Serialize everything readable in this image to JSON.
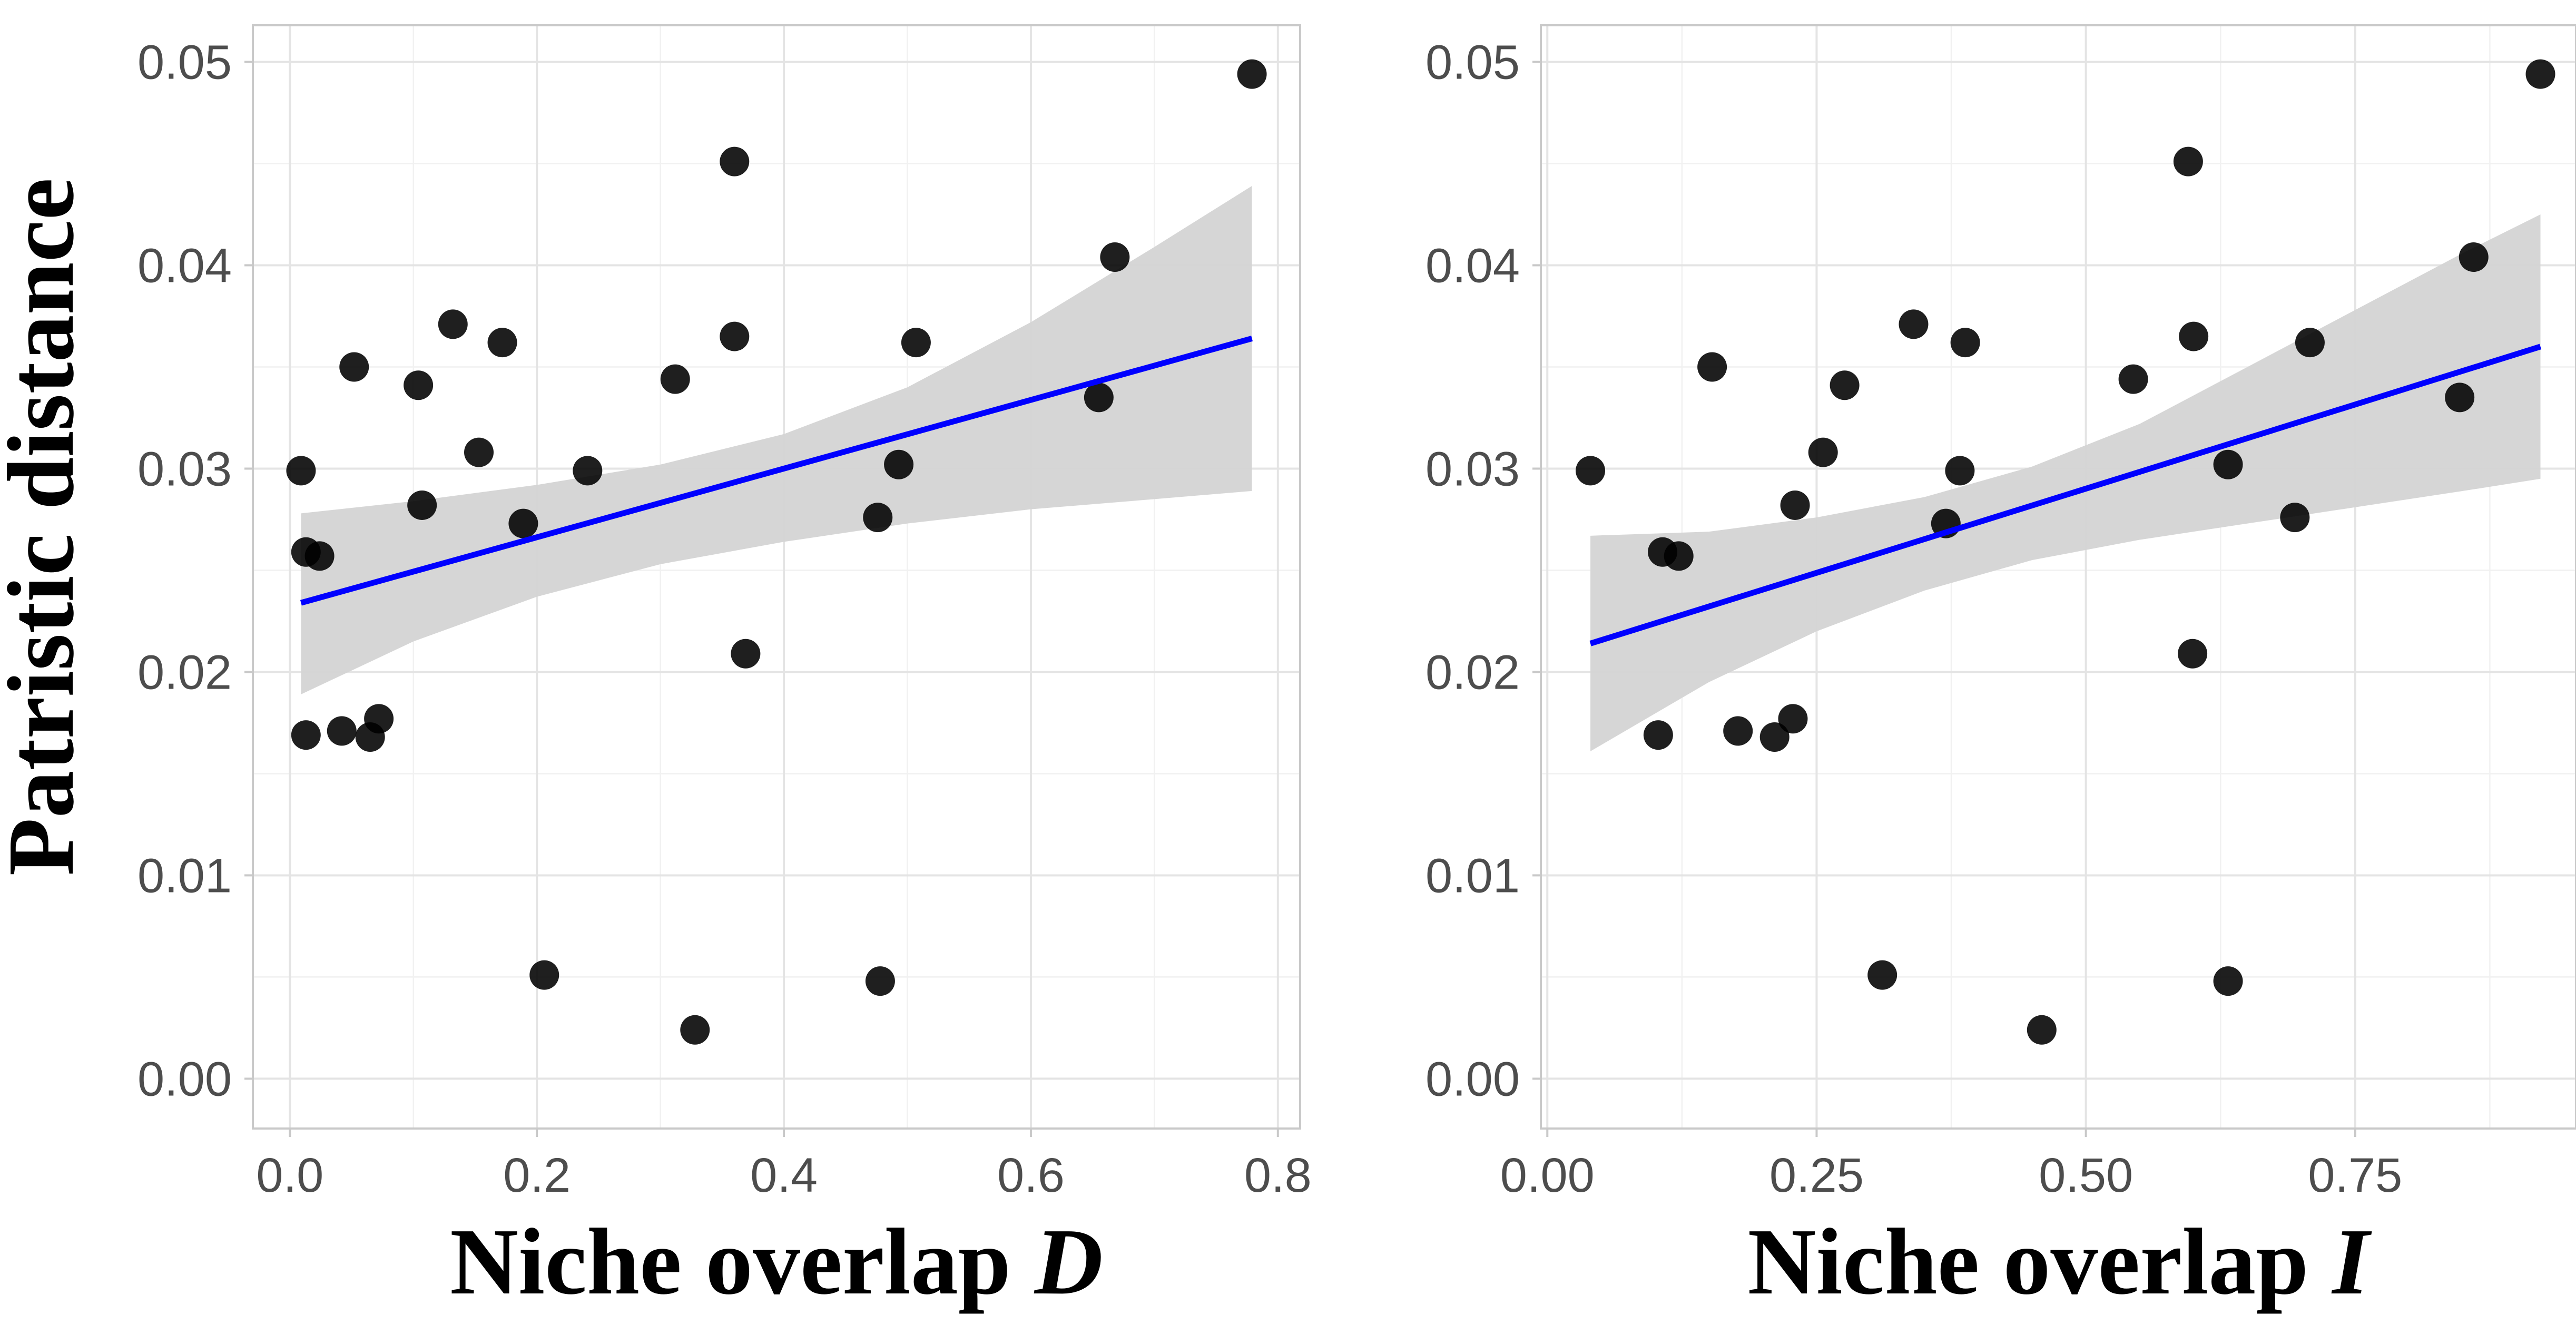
{
  "ylabel": "Patristic distance",
  "chart_data": [
    {
      "type": "scatter",
      "xlabel_prefix": "Niche overlap ",
      "xlabel_var": "D",
      "ylabel": "Patristic distance",
      "xlim": [
        -0.03,
        0.818
      ],
      "ylim": [
        -0.00245,
        0.0518
      ],
      "x_ticks": [
        0.0,
        0.2,
        0.4,
        0.6,
        0.8
      ],
      "x_tick_labels": [
        "0.0",
        "0.2",
        "0.4",
        "0.6",
        "0.8"
      ],
      "y_ticks": [
        0.0,
        0.01,
        0.02,
        0.03,
        0.04,
        0.05
      ],
      "y_tick_labels": [
        "0.00",
        "0.01",
        "0.02",
        "0.03",
        "0.04",
        "0.05"
      ],
      "grid": true,
      "point_color": "#000000",
      "fit_color": "#0000ff",
      "band_color": "#d4d4d4",
      "points": [
        {
          "x": 0.009,
          "y": 0.0299
        },
        {
          "x": 0.013,
          "y": 0.0259
        },
        {
          "x": 0.024,
          "y": 0.0257
        },
        {
          "x": 0.013,
          "y": 0.0169
        },
        {
          "x": 0.042,
          "y": 0.0171
        },
        {
          "x": 0.065,
          "y": 0.0168
        },
        {
          "x": 0.072,
          "y": 0.0177
        },
        {
          "x": 0.052,
          "y": 0.035
        },
        {
          "x": 0.104,
          "y": 0.0341
        },
        {
          "x": 0.107,
          "y": 0.0282
        },
        {
          "x": 0.132,
          "y": 0.0371
        },
        {
          "x": 0.153,
          "y": 0.0308
        },
        {
          "x": 0.172,
          "y": 0.0362
        },
        {
          "x": 0.189,
          "y": 0.0273
        },
        {
          "x": 0.206,
          "y": 0.0051
        },
        {
          "x": 0.241,
          "y": 0.0299
        },
        {
          "x": 0.312,
          "y": 0.0344
        },
        {
          "x": 0.328,
          "y": 0.0024
        },
        {
          "x": 0.36,
          "y": 0.0451
        },
        {
          "x": 0.36,
          "y": 0.0365
        },
        {
          "x": 0.369,
          "y": 0.0209
        },
        {
          "x": 0.476,
          "y": 0.0276
        },
        {
          "x": 0.478,
          "y": 0.0048
        },
        {
          "x": 0.493,
          "y": 0.0302
        },
        {
          "x": 0.507,
          "y": 0.0362
        },
        {
          "x": 0.655,
          "y": 0.0335
        },
        {
          "x": 0.668,
          "y": 0.0404
        },
        {
          "x": 0.779,
          "y": 0.0494
        }
      ],
      "fit": {
        "x": [
          0.009,
          0.779
        ],
        "y": [
          0.0234,
          0.0364
        ]
      },
      "band": {
        "x": [
          0.009,
          0.1,
          0.2,
          0.3,
          0.4,
          0.5,
          0.6,
          0.7,
          0.779
        ],
        "lower": [
          0.0189,
          0.0215,
          0.0237,
          0.0253,
          0.0264,
          0.0273,
          0.028,
          0.0285,
          0.0289
        ],
        "upper": [
          0.0278,
          0.0284,
          0.0292,
          0.0302,
          0.0317,
          0.034,
          0.0372,
          0.0409,
          0.0439
        ]
      }
    },
    {
      "type": "scatter",
      "xlabel_prefix": "Niche overlap ",
      "xlabel_var": "I",
      "ylabel": "",
      "xlim": [
        -0.006,
        0.955
      ],
      "ylim": [
        -0.00245,
        0.0518
      ],
      "x_ticks": [
        0.0,
        0.25,
        0.5,
        0.75
      ],
      "x_tick_labels": [
        "0.00",
        "0.25",
        "0.50",
        "0.75"
      ],
      "y_ticks": [
        0.0,
        0.01,
        0.02,
        0.03,
        0.04,
        0.05
      ],
      "y_tick_labels": [
        "0.00",
        "0.01",
        "0.02",
        "0.03",
        "0.04",
        "0.05"
      ],
      "grid": true,
      "point_color": "#000000",
      "fit_color": "#0000ff",
      "band_color": "#d4d4d4",
      "points": [
        {
          "x": 0.04,
          "y": 0.0299
        },
        {
          "x": 0.107,
          "y": 0.0259
        },
        {
          "x": 0.122,
          "y": 0.0257
        },
        {
          "x": 0.103,
          "y": 0.0169
        },
        {
          "x": 0.177,
          "y": 0.0171
        },
        {
          "x": 0.211,
          "y": 0.0168
        },
        {
          "x": 0.228,
          "y": 0.0177
        },
        {
          "x": 0.153,
          "y": 0.035
        },
        {
          "x": 0.276,
          "y": 0.0341
        },
        {
          "x": 0.23,
          "y": 0.0282
        },
        {
          "x": 0.34,
          "y": 0.0371
        },
        {
          "x": 0.256,
          "y": 0.0308
        },
        {
          "x": 0.388,
          "y": 0.0362
        },
        {
          "x": 0.37,
          "y": 0.0273
        },
        {
          "x": 0.311,
          "y": 0.0051
        },
        {
          "x": 0.383,
          "y": 0.0299
        },
        {
          "x": 0.544,
          "y": 0.0344
        },
        {
          "x": 0.459,
          "y": 0.0024
        },
        {
          "x": 0.595,
          "y": 0.0451
        },
        {
          "x": 0.6,
          "y": 0.0365
        },
        {
          "x": 0.599,
          "y": 0.0209
        },
        {
          "x": 0.694,
          "y": 0.0276
        },
        {
          "x": 0.632,
          "y": 0.0048
        },
        {
          "x": 0.632,
          "y": 0.0302
        },
        {
          "x": 0.708,
          "y": 0.0362
        },
        {
          "x": 0.847,
          "y": 0.0335
        },
        {
          "x": 0.86,
          "y": 0.0404
        },
        {
          "x": 0.922,
          "y": 0.0494
        }
      ],
      "fit": {
        "x": [
          0.04,
          0.922
        ],
        "y": [
          0.0214,
          0.036
        ]
      },
      "band": {
        "x": [
          0.04,
          0.15,
          0.25,
          0.35,
          0.45,
          0.55,
          0.65,
          0.75,
          0.85,
          0.922
        ],
        "lower": [
          0.0161,
          0.0195,
          0.022,
          0.024,
          0.0255,
          0.0265,
          0.0273,
          0.0281,
          0.0289,
          0.0295
        ],
        "upper": [
          0.0267,
          0.0269,
          0.0276,
          0.0286,
          0.0301,
          0.0322,
          0.035,
          0.0378,
          0.0406,
          0.0425
        ]
      }
    }
  ]
}
